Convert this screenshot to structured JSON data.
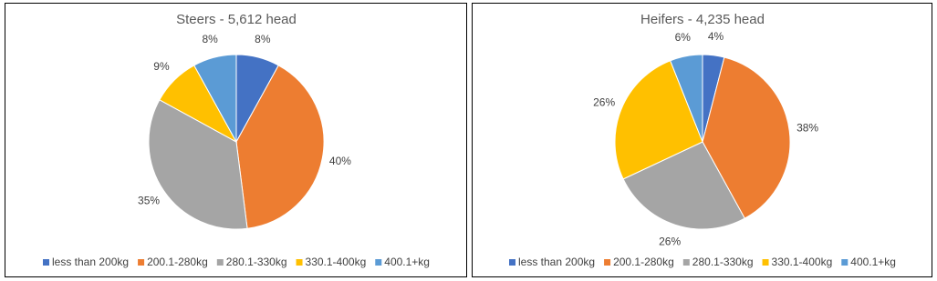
{
  "chart_data": [
    {
      "type": "pie",
      "title": "Steers - 5,612 head",
      "categories": [
        "less than 200kg",
        "200.1-280kg",
        "280.1-330kg",
        "330.1-400kg",
        "400.1+kg"
      ],
      "values": [
        8,
        40,
        35,
        9,
        8
      ],
      "value_labels": [
        "8%",
        "40%",
        "35%",
        "9%",
        "8%"
      ],
      "colors": [
        "#4472c4",
        "#ed7d31",
        "#a5a5a5",
        "#ffc000",
        "#5b9bd5"
      ]
    },
    {
      "type": "pie",
      "title": "Heifers - 4,235 head",
      "categories": [
        "less than 200kg",
        "200.1-280kg",
        "280.1-330kg",
        "330.1-400kg",
        "400.1+kg"
      ],
      "values": [
        4,
        38,
        26,
        26,
        6
      ],
      "value_labels": [
        "4%",
        "38%",
        "26%",
        "26%",
        "6%"
      ],
      "colors": [
        "#4472c4",
        "#ed7d31",
        "#a5a5a5",
        "#ffc000",
        "#5b9bd5"
      ]
    }
  ]
}
